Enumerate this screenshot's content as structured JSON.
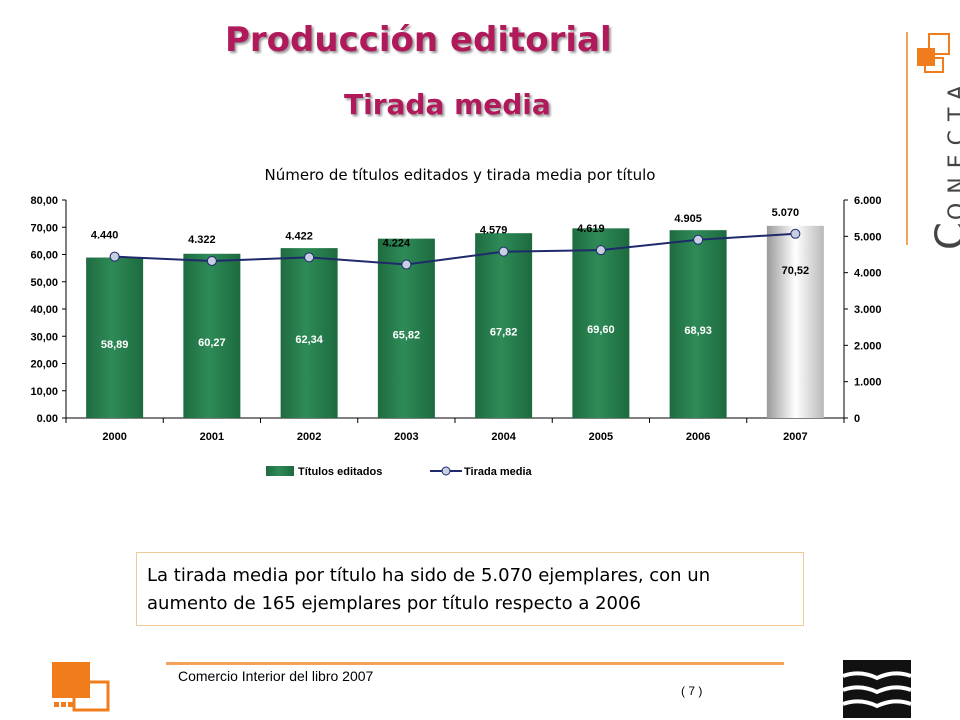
{
  "header": {
    "title": "Producción editorial",
    "subtitle": "Tirada media"
  },
  "brand": {
    "initial": "C",
    "rest": "ONECTA"
  },
  "chart_data": {
    "type": "bar",
    "title": "Número de títulos editados y tirada media por título",
    "categories": [
      "2000",
      "2001",
      "2002",
      "2003",
      "2004",
      "2005",
      "2006",
      "2007"
    ],
    "series": [
      {
        "name": "Títulos editados",
        "type": "bar",
        "axis": "left",
        "values": [
          58.89,
          60.27,
          62.34,
          65.82,
          67.82,
          69.6,
          68.93,
          70.52
        ],
        "labels": [
          "58,89",
          "60,27",
          "62,34",
          "65,82",
          "67,82",
          "69,60",
          "68,93",
          "70,52"
        ]
      },
      {
        "name": "Tirada media",
        "type": "line",
        "axis": "right",
        "values": [
          4440,
          4322,
          4422,
          4224,
          4579,
          4619,
          4905,
          5070
        ],
        "labels": [
          "4.440",
          "4.322",
          "4.422",
          "4.224",
          "4.579",
          "4.619",
          "4.905",
          "5.070"
        ]
      }
    ],
    "y_left": {
      "ylim": [
        0,
        80
      ],
      "ticks": [
        0,
        10,
        20,
        30,
        40,
        50,
        60,
        70,
        80
      ],
      "tick_labels": [
        "0.00",
        "10,00",
        "20,00",
        "30,00",
        "40,00",
        "50,00",
        "60,00",
        "70,00",
        "80,00"
      ]
    },
    "y_right": {
      "ylim": [
        0,
        6000
      ],
      "ticks": [
        0,
        1000,
        2000,
        3000,
        4000,
        5000,
        6000
      ],
      "tick_labels": [
        "0",
        "1.000",
        "2.000",
        "3.000",
        "4.000",
        "5.000",
        "6.000"
      ]
    },
    "legend_position": "bottom",
    "colors": {
      "bar": "#2e8b57",
      "bar_highlight": "#b8b8b8",
      "line": "#1f2a6b",
      "marker": "#c9cfe3"
    }
  },
  "note": {
    "text": "La tirada media por título ha sido de 5.070 ejemplares, con un aumento de 165 ejemplares por título respecto a 2006"
  },
  "footer": {
    "left_text": "Comercio Interior del libro 2007",
    "page": "( 7 )"
  }
}
